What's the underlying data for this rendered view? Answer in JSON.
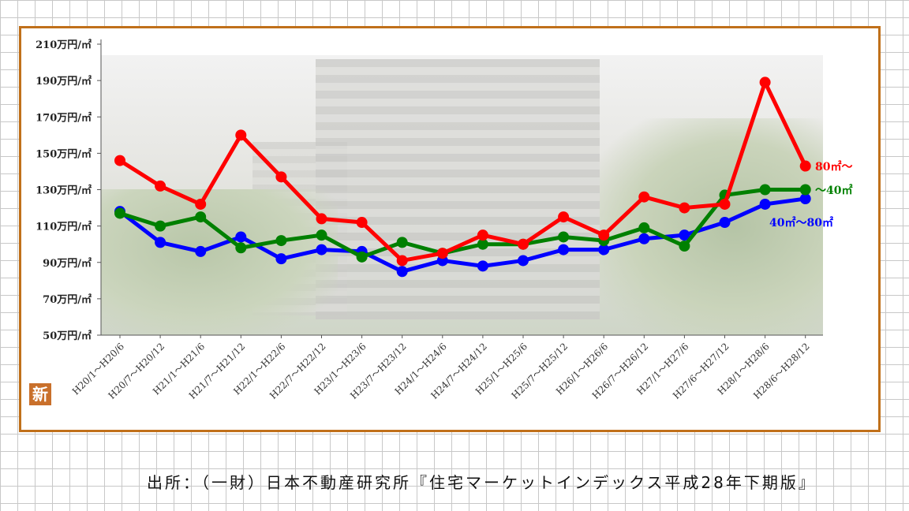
{
  "source_note": "出所：（一財）日本不動産研究所『住宅マーケットインデックス平成28年下期版』",
  "badge_label": "新",
  "colors": {
    "frame": "#c0701a",
    "red": "#ff0000",
    "green": "#008000",
    "blue": "#0000ff"
  },
  "chart_data": {
    "type": "line",
    "title": "",
    "xlabel": "",
    "ylabel": "",
    "ylim": [
      50,
      210
    ],
    "y_ticks": [
      50,
      70,
      90,
      110,
      130,
      150,
      170,
      190,
      210
    ],
    "y_tick_labels": [
      "50万円/㎡",
      "70万円/㎡",
      "90万円/㎡",
      "110万円/㎡",
      "130万円/㎡",
      "150万円/㎡",
      "170万円/㎡",
      "190万円/㎡",
      "210万円/㎡"
    ],
    "categories": [
      "H20/1～H20/6",
      "H20/7～H20/12",
      "H21/1～H21/6",
      "H21/7～H21/12",
      "H22/1～H22/6",
      "H22/7～H22/12",
      "H23/1～H23/6",
      "H23/7～H23/12",
      "H24/1～H24/6",
      "H24/7～H24/12",
      "H25/1～H25/6",
      "H25/7～H25/12",
      "H26/1～H26/6",
      "H26/7～H26/12",
      "H27/1～H27/6",
      "H27/6～H27/12",
      "H28/1～H28/6",
      "H28/6～H28/12"
    ],
    "series": [
      {
        "name": "80㎡～",
        "color": "#ff0000",
        "values": [
          146,
          132,
          122,
          160,
          137,
          114,
          112,
          91,
          95,
          105,
          100,
          115,
          105,
          126,
          120,
          122,
          189,
          143
        ]
      },
      {
        "name": "～40㎡",
        "color": "#008000",
        "values": [
          117,
          110,
          115,
          98,
          102,
          105,
          93,
          101,
          95,
          100,
          100,
          104,
          102,
          109,
          99,
          127,
          130,
          130
        ]
      },
      {
        "name": "40㎡～80㎡",
        "color": "#0000ff",
        "values": [
          118,
          101,
          96,
          104,
          92,
          97,
          96,
          85,
          91,
          88,
          91,
          97,
          97,
          103,
          105,
          112,
          122,
          125
        ]
      }
    ]
  }
}
